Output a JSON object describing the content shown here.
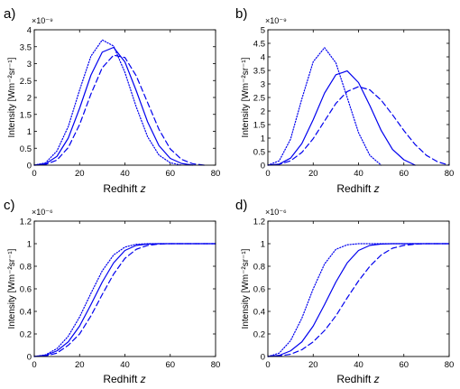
{
  "chart_data": [
    {
      "panel_label": "a)",
      "type": "line",
      "xlabel_main": "Redhift ",
      "xlabel_var": "z",
      "ylabel": "Intensity [Wm⁻²sr⁻¹]",
      "multiplier": "×10⁻⁹",
      "xlim": [
        0,
        80
      ],
      "ylim": [
        0,
        4
      ],
      "xticks": [
        "0",
        "20",
        "40",
        "60",
        "80"
      ],
      "yticks": [
        "0",
        "0.5",
        "1",
        "1.5",
        "2",
        "2.5",
        "3",
        "3.5",
        "4"
      ],
      "series": [
        {
          "style": "solid",
          "x": [
            0,
            5,
            10,
            15,
            20,
            25,
            30,
            35,
            40,
            45,
            50,
            55,
            60,
            65,
            70
          ],
          "values": [
            0,
            0.04,
            0.26,
            0.8,
            1.68,
            2.66,
            3.34,
            3.48,
            3.05,
            2.2,
            1.28,
            0.58,
            0.2,
            0.05,
            0
          ]
        },
        {
          "style": "dashed",
          "x": [
            0,
            5,
            10,
            15,
            20,
            25,
            30,
            35,
            40,
            45,
            50,
            55,
            60,
            65,
            70,
            75
          ],
          "values": [
            0,
            0.02,
            0.15,
            0.52,
            1.2,
            2.1,
            2.88,
            3.25,
            3.18,
            2.64,
            1.85,
            1.06,
            0.48,
            0.17,
            0.04,
            0
          ]
        },
        {
          "style": "dotted",
          "x": [
            0,
            5,
            10,
            15,
            20,
            25,
            30,
            35,
            40,
            45,
            50,
            55,
            60,
            65
          ],
          "values": [
            0,
            0.07,
            0.42,
            1.14,
            2.22,
            3.22,
            3.7,
            3.52,
            2.74,
            1.72,
            0.84,
            0.3,
            0.07,
            0
          ]
        }
      ]
    },
    {
      "panel_label": "b)",
      "type": "line",
      "xlabel_main": "Redhift ",
      "xlabel_var": "z",
      "ylabel": "Intensity [Wm⁻²sr⁻¹]",
      "multiplier": "×10⁻⁹",
      "xlim": [
        0,
        80
      ],
      "ylim": [
        0,
        5
      ],
      "xticks": [
        "0",
        "20",
        "40",
        "60",
        "80"
      ],
      "yticks": [
        "0",
        "0.5",
        "1",
        "1.5",
        "2",
        "2.5",
        "3",
        "3.5",
        "4",
        "4.5",
        "5"
      ],
      "series": [
        {
          "style": "solid",
          "x": [
            0,
            5,
            10,
            15,
            20,
            25,
            30,
            35,
            40,
            45,
            50,
            55,
            60,
            65
          ],
          "values": [
            0,
            0.04,
            0.26,
            0.8,
            1.68,
            2.66,
            3.34,
            3.48,
            3.05,
            2.2,
            1.28,
            0.58,
            0.2,
            0
          ]
        },
        {
          "style": "dashed",
          "x": [
            0,
            5,
            10,
            15,
            20,
            25,
            30,
            35,
            40,
            45,
            50,
            55,
            60,
            65,
            70,
            75,
            80
          ],
          "values": [
            0,
            0.03,
            0.16,
            0.47,
            0.98,
            1.63,
            2.28,
            2.72,
            2.9,
            2.78,
            2.4,
            1.86,
            1.28,
            0.76,
            0.36,
            0.12,
            0
          ]
        },
        {
          "style": "dotted",
          "x": [
            0,
            5,
            10,
            15,
            20,
            25,
            30,
            35,
            40,
            45,
            50
          ],
          "values": [
            0,
            0.16,
            0.96,
            2.45,
            3.82,
            4.34,
            3.78,
            2.5,
            1.2,
            0.36,
            0
          ]
        }
      ]
    },
    {
      "panel_label": "c)",
      "type": "line",
      "xlabel_main": "Redhift ",
      "xlabel_var": "z",
      "ylabel": "Intensity [Wm⁻²sr⁻¹]",
      "multiplier": "×10⁻⁶",
      "xlim": [
        0,
        80
      ],
      "ylim": [
        0,
        1.2
      ],
      "xticks": [
        "0",
        "20",
        "40",
        "60",
        "80"
      ],
      "yticks": [
        "0",
        "0.2",
        "0.4",
        "0.6",
        "0.8",
        "1",
        "1.2"
      ],
      "series": [
        {
          "style": "solid",
          "x": [
            0,
            5,
            10,
            15,
            20,
            25,
            30,
            35,
            40,
            45,
            50,
            55,
            60,
            70,
            80
          ],
          "values": [
            0,
            0.01,
            0.05,
            0.13,
            0.27,
            0.46,
            0.66,
            0.83,
            0.94,
            0.985,
            0.997,
            1,
            1,
            1,
            1
          ]
        },
        {
          "style": "dashed",
          "x": [
            0,
            5,
            10,
            15,
            20,
            25,
            30,
            35,
            40,
            45,
            50,
            55,
            60,
            65,
            70,
            80
          ],
          "values": [
            0,
            0.005,
            0.03,
            0.1,
            0.2,
            0.36,
            0.55,
            0.73,
            0.87,
            0.95,
            0.985,
            0.997,
            1,
            1,
            1,
            1
          ]
        },
        {
          "style": "dotted",
          "x": [
            0,
            5,
            10,
            15,
            20,
            25,
            30,
            35,
            40,
            45,
            50,
            55,
            60,
            70,
            80
          ],
          "values": [
            0,
            0.015,
            0.07,
            0.18,
            0.35,
            0.56,
            0.76,
            0.9,
            0.97,
            0.995,
            1,
            1,
            1,
            1,
            1
          ]
        }
      ]
    },
    {
      "panel_label": "d)",
      "type": "line",
      "xlabel_main": "Redhift ",
      "xlabel_var": "z",
      "ylabel": "Intensity [Wm⁻²sr⁻¹]",
      "multiplier": "×10⁻⁶",
      "xlim": [
        0,
        80
      ],
      "ylim": [
        0,
        1.2
      ],
      "xticks": [
        "0",
        "20",
        "40",
        "60",
        "80"
      ],
      "yticks": [
        "0",
        "0.2",
        "0.4",
        "0.6",
        "0.8",
        "1",
        "1.2"
      ],
      "series": [
        {
          "style": "solid",
          "x": [
            0,
            5,
            10,
            15,
            20,
            25,
            30,
            35,
            40,
            45,
            50,
            55,
            60,
            70,
            80
          ],
          "values": [
            0,
            0.01,
            0.05,
            0.13,
            0.27,
            0.46,
            0.66,
            0.83,
            0.94,
            0.985,
            0.997,
            1,
            1,
            1,
            1
          ]
        },
        {
          "style": "dashed",
          "x": [
            0,
            5,
            10,
            15,
            20,
            25,
            30,
            35,
            40,
            45,
            50,
            55,
            60,
            65,
            70,
            75,
            80
          ],
          "values": [
            0,
            0.005,
            0.02,
            0.06,
            0.13,
            0.23,
            0.36,
            0.52,
            0.67,
            0.8,
            0.9,
            0.96,
            0.985,
            0.996,
            1,
            1,
            1
          ]
        },
        {
          "style": "dotted",
          "x": [
            0,
            5,
            10,
            15,
            20,
            25,
            30,
            35,
            40,
            45,
            50,
            55,
            60,
            70,
            80
          ],
          "values": [
            0,
            0.03,
            0.14,
            0.34,
            0.6,
            0.82,
            0.95,
            0.99,
            1,
            1,
            1,
            1,
            1,
            1,
            1
          ]
        }
      ]
    }
  ],
  "colors": {
    "line": "#0000ee",
    "axis": "#000000",
    "text": "#000000"
  }
}
